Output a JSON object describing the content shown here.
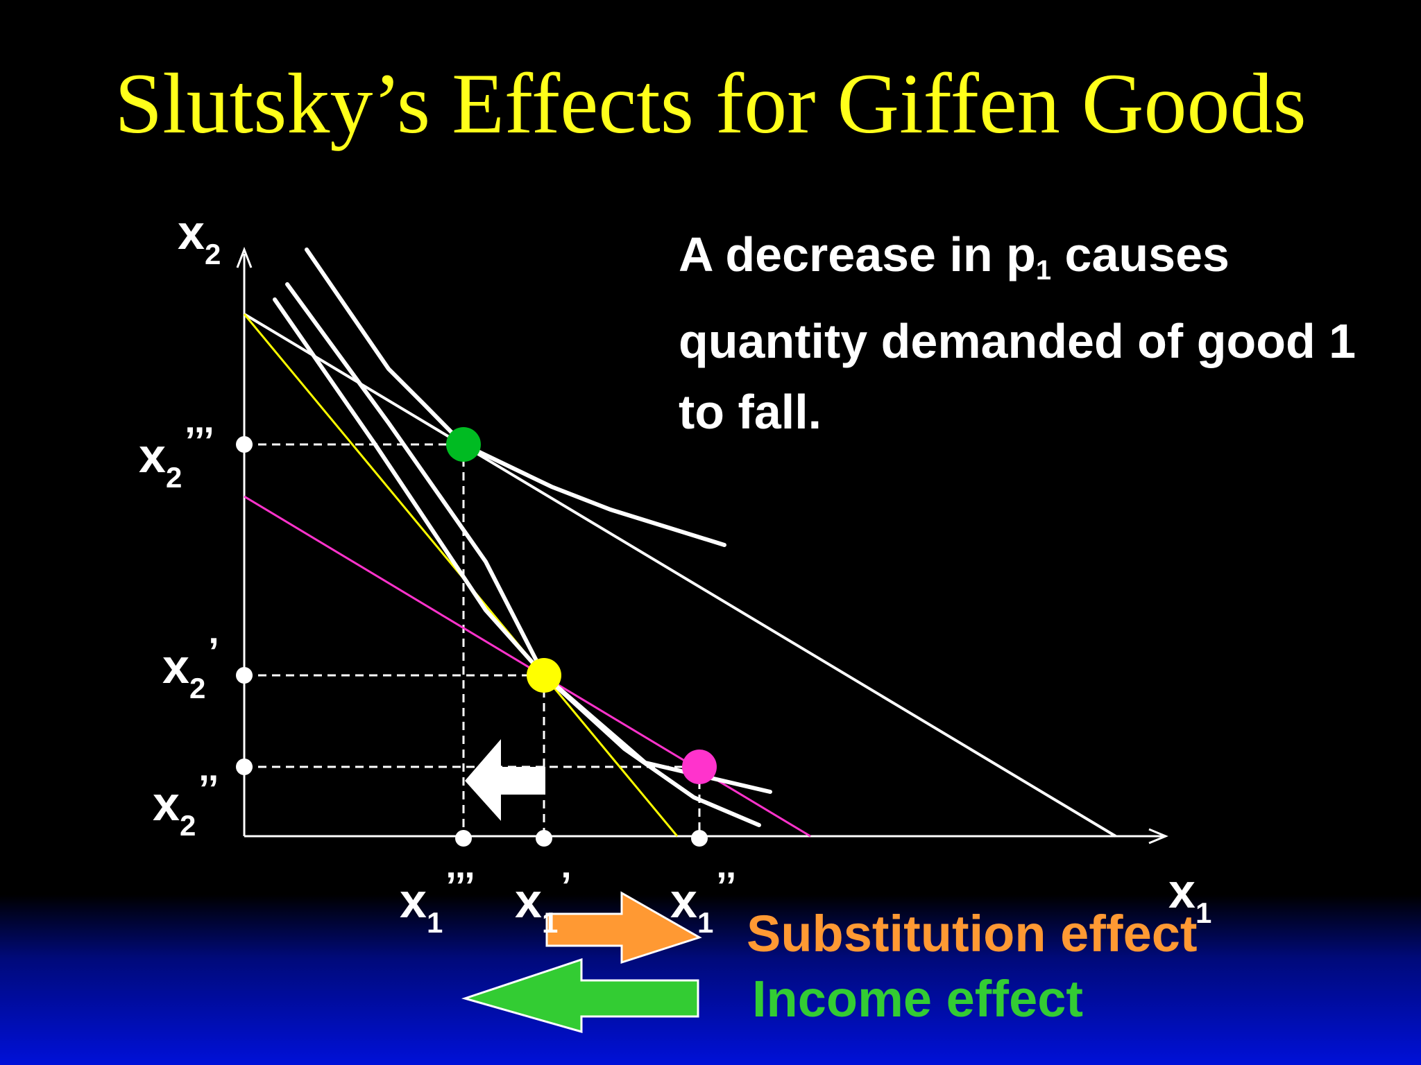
{
  "title": "Slutsky’s Effects for Giffen Goods",
  "description": {
    "part1": "A decrease in p",
    "sub": "1",
    "part2": " causes quantity demanded of good 1 to fall."
  },
  "axes": {
    "x_label": "x",
    "x_sub": "1",
    "y_label": "x",
    "y_sub": "2"
  },
  "y_ticks": [
    {
      "base": "x",
      "sub": "2",
      "primes": "’’’"
    },
    {
      "base": "x",
      "sub": "2",
      "primes": "’"
    },
    {
      "base": "x",
      "sub": "2",
      "primes": "’’"
    }
  ],
  "x_ticks": [
    {
      "base": "x",
      "sub": "1",
      "primes": "’’’"
    },
    {
      "base": "x",
      "sub": "1",
      "primes": "’"
    },
    {
      "base": "x",
      "sub": "1",
      "primes": "’’"
    }
  ],
  "effects": {
    "substitution": {
      "label": "Substitution effect",
      "color": "#ff9933"
    },
    "income": {
      "label": "Income effect",
      "color": "#33cc33"
    }
  },
  "colors": {
    "title": "#ffff1a",
    "original_budget": "#ffff00",
    "compensated_budget": "#ff33cc",
    "final_budget": "#ffffff",
    "bundle_original": "#ffff00",
    "bundle_compensated": "#ff33cc",
    "bundle_final": "#00bb22",
    "background": "#000000",
    "footer_gradient": "#0010d8"
  }
}
